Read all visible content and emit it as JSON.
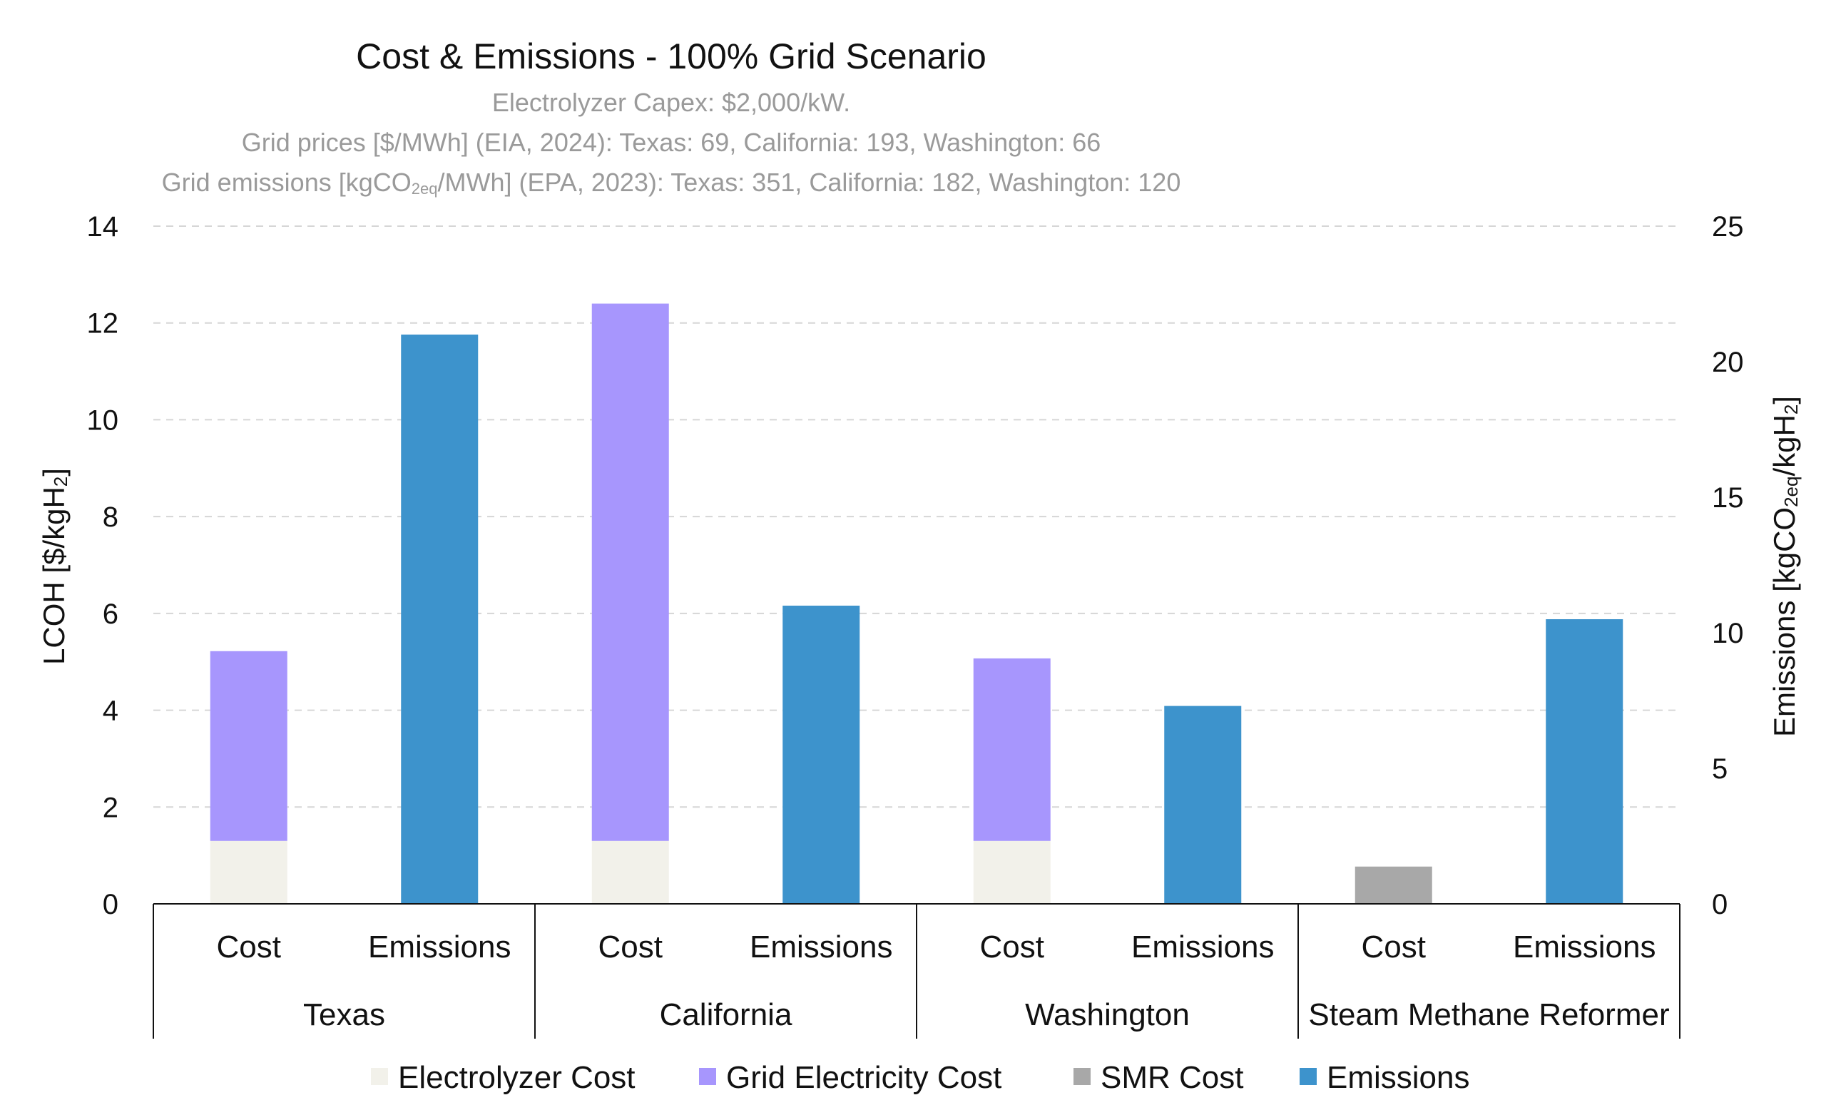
{
  "chart_data": {
    "type": "bar",
    "title": "Cost & Emissions - 100% Grid Scenario",
    "subtitle_lines": [
      "Electrolyzer Capex: $2,000/kW.",
      "Grid prices [$/MWh] (EIA, 2024): Texas: 69, California: 193, Washington: 66",
      {
        "pre": "Grid emissions [kgCO",
        "sub": "2eq",
        "post": "/MWh] (EPA, 2023): Texas: 351, California: 182, Washington: 120"
      }
    ],
    "ylabel_left": {
      "pre": "LCOH [$/kgH",
      "sub": "2",
      "post": "]"
    },
    "ylabel_right": {
      "pre": "Emissions [kgCO",
      "sub": "2eq",
      "mid": "/kgH",
      "sub2": "2",
      "post": "]"
    },
    "ylim_left": [
      0,
      14
    ],
    "yticks_left": [
      0,
      2,
      4,
      6,
      8,
      10,
      12,
      14
    ],
    "ylim_right": [
      0,
      25
    ],
    "yticks_right": [
      0,
      5,
      10,
      15,
      20,
      25
    ],
    "grid": true,
    "legend_position": "bottom",
    "groups": [
      {
        "name": "Texas",
        "subcategories": [
          "Cost",
          "Emissions"
        ]
      },
      {
        "name": "California",
        "subcategories": [
          "Cost",
          "Emissions"
        ]
      },
      {
        "name": "Washington",
        "subcategories": [
          "Cost",
          "Emissions"
        ]
      },
      {
        "name": "Steam Methane Reformer",
        "subcategories": [
          "Cost",
          "Emissions"
        ]
      }
    ],
    "series": [
      {
        "name": "Electrolyzer Cost",
        "axis": "left",
        "color": "#f2f1ea",
        "values": [
          1.3,
          null,
          1.3,
          null,
          1.3,
          null,
          null,
          null
        ]
      },
      {
        "name": "Grid Electricity Cost",
        "axis": "left",
        "color": "#a796fd",
        "values": [
          3.92,
          null,
          11.1,
          null,
          3.77,
          null,
          null,
          null
        ]
      },
      {
        "name": "SMR Cost",
        "axis": "left",
        "color": "#a8a8a8",
        "values": [
          null,
          null,
          null,
          null,
          null,
          null,
          0.77,
          null
        ]
      },
      {
        "name": "Emissions",
        "axis": "right",
        "color": "#3d93cc",
        "values": [
          null,
          21.0,
          null,
          11.0,
          null,
          7.3,
          null,
          10.5
        ]
      }
    ]
  }
}
